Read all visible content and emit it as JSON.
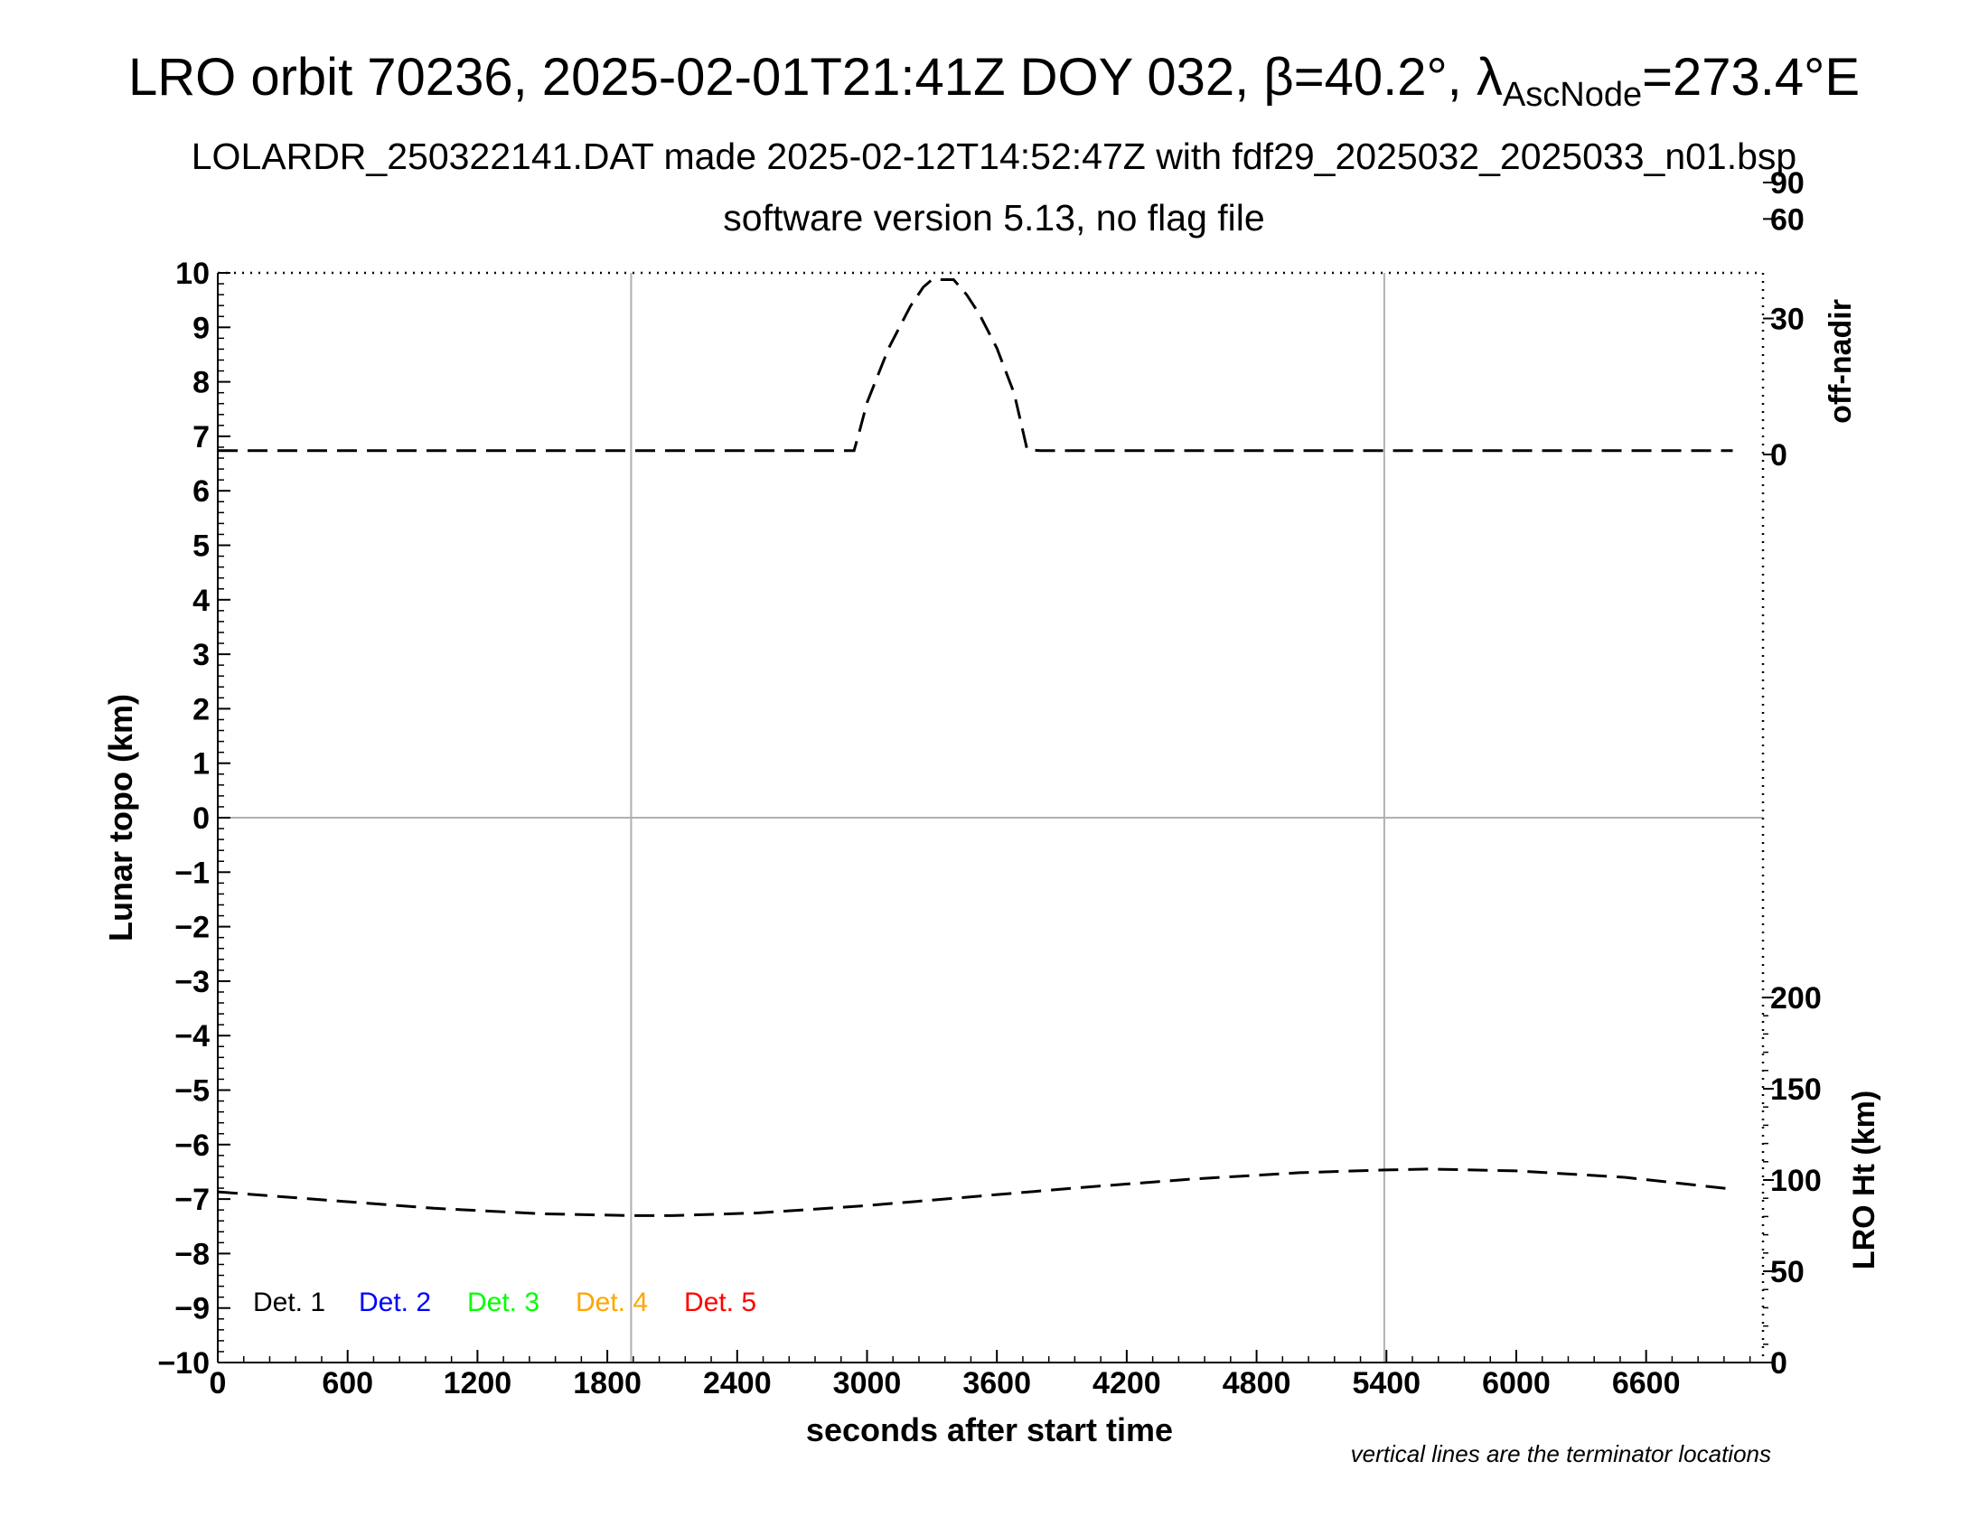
{
  "titles": {
    "line1_prefix": "LRO orbit 70236, 2025-02-01T21:41Z DOY 032, β=40.2°, λ",
    "line1_sub": "AscNode",
    "line1_suffix": "=273.4°E",
    "line2": "LOLARDR_250322141.DAT made 2025-02-12T14:52:47Z with fdf29_2025032_2025033_n01.bsp",
    "line3": "software version 5.13, no flag file"
  },
  "note": "vertical lines are the terminator locations",
  "legend": [
    {
      "label": "Det. 1",
      "color": "#000000"
    },
    {
      "label": "Det. 2",
      "color": "#0000ff"
    },
    {
      "label": "Det. 3",
      "color": "#00ff00"
    },
    {
      "label": "Det. 4",
      "color": "#ffa500"
    },
    {
      "label": "Det. 5",
      "color": "#ff0000"
    }
  ],
  "chart_data": {
    "type": "line",
    "xlabel": "seconds after start time",
    "ylabel": "Lunar topo (km)",
    "y2label_top": "off-nadir",
    "y2label_bottom": "LRO Ht (km)",
    "xlim": [
      0,
      7140
    ],
    "ylim": [
      -10,
      10
    ],
    "x_ticks": [
      0,
      600,
      1200,
      1800,
      2400,
      3000,
      3600,
      4200,
      4800,
      5400,
      6000,
      6600
    ],
    "x_tick_labels": [
      "0",
      "600",
      "1200",
      "1800",
      "2400",
      "3000",
      "3600",
      "4200",
      "4800",
      "5400",
      "6000",
      "6600"
    ],
    "y_ticks": [
      10,
      9,
      8,
      7,
      6,
      5,
      4,
      3,
      2,
      1,
      0,
      -1,
      -2,
      -3,
      -4,
      -5,
      -6,
      -7,
      -8,
      -9,
      -10
    ],
    "y_tick_labels": [
      "10",
      "9",
      "8",
      "7",
      "6",
      "5",
      "4",
      "3",
      "2",
      "1",
      "0",
      "−1",
      "−2",
      "−3",
      "−4",
      "−5",
      "−6",
      "−7",
      "−8",
      "−9",
      "−10"
    ],
    "off_nadir_ticks": [
      0,
      30,
      60,
      90
    ],
    "off_nadir_tick_labels": [
      "0",
      "30",
      "60",
      "90"
    ],
    "ht_ticks": [
      0,
      50,
      100,
      150,
      200
    ],
    "ht_tick_labels": [
      "0",
      "50",
      "100",
      "150",
      "200"
    ],
    "terminator_lines_x": [
      1910,
      5390
    ],
    "grid": "zero line and terminator lines only",
    "legend_position": "bottom-left",
    "series": [
      {
        "name": "off-nadir",
        "axis": "right-top (off-nadir, deg)",
        "style": "dashed",
        "x": [
          0,
          1000,
          2000,
          2940,
          2960,
          3000,
          3100,
          3200,
          3260,
          3300,
          3350,
          3400,
          3460,
          3520,
          3600,
          3680,
          3720,
          3740,
          3800,
          4800,
          5800,
          7000
        ],
        "y": [
          0.8,
          0.8,
          0.8,
          0.8,
          4,
          11,
          23,
          33,
          38,
          40,
          40,
          40,
          36,
          31,
          23,
          13,
          5,
          1,
          0.8,
          0.8,
          0.8,
          0.8
        ]
      },
      {
        "name": "LRO Ht",
        "axis": "right-bottom (LRO Ht, km)",
        "style": "dashed",
        "x": [
          0,
          500,
          1000,
          1500,
          1910,
          2100,
          2500,
          3000,
          3500,
          4000,
          4500,
          5000,
          5390,
          5600,
          6000,
          6500,
          7000
        ],
        "y": [
          93.5,
          89,
          84.5,
          81.5,
          80.5,
          80.5,
          82,
          86,
          91,
          96,
          100.5,
          104,
          105.5,
          106,
          105,
          101.5,
          95
        ]
      }
    ]
  }
}
